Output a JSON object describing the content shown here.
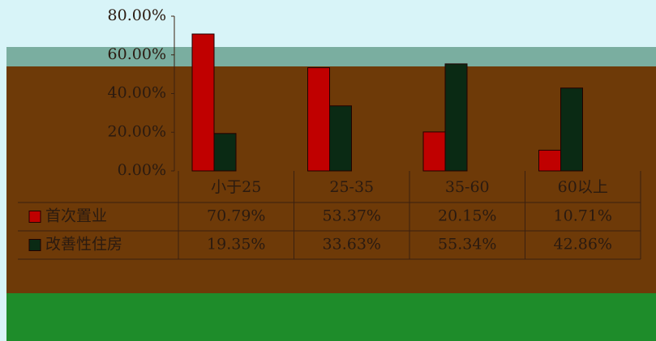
{
  "chart_data": {
    "type": "bar",
    "categories": [
      "小于25",
      "25-35",
      "35-60",
      "60以上"
    ],
    "series": [
      {
        "name": "首次置业",
        "color": "#c00000",
        "values": [
          70.79,
          53.37,
          20.15,
          10.71
        ],
        "value_labels": [
          "70.79%",
          "53.37%",
          "20.15%",
          "10.71%"
        ]
      },
      {
        "name": "改善性住房",
        "color": "#0a2a14",
        "values": [
          19.35,
          33.63,
          55.34,
          42.86
        ],
        "value_labels": [
          "19.35%",
          "33.63%",
          "55.34%",
          "42.86%"
        ]
      }
    ],
    "ylim": [
      0,
      80
    ],
    "yticks": [
      {
        "value": 0,
        "label": "0.00%"
      },
      {
        "value": 20,
        "label": "20.00%"
      },
      {
        "value": 40,
        "label": "40.00%"
      },
      {
        "value": 60,
        "label": "60.00%"
      },
      {
        "value": 80,
        "label": "80.00%"
      }
    ]
  }
}
